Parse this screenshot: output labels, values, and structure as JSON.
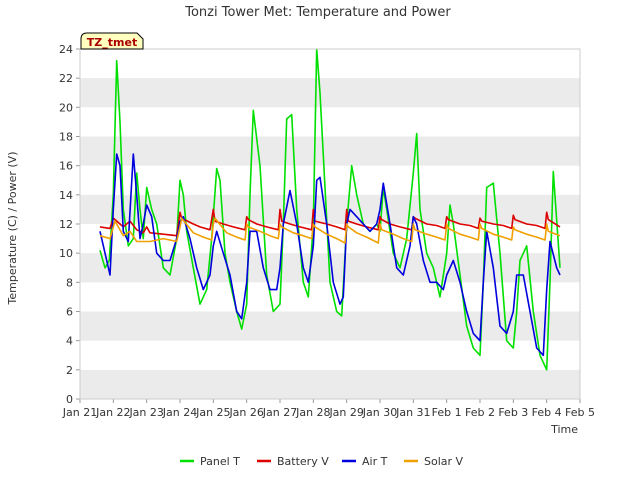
{
  "chart_data": {
    "type": "line",
    "title": "Tonzi Tower Met: Temperature and Power",
    "xlabel": "Time",
    "ylabel": "Temperature (C) / Power (V)",
    "badge": "TZ_tmet",
    "xlim": [
      0,
      15
    ],
    "ylim": [
      0,
      24
    ],
    "x_ticks": [
      {
        "x": 0,
        "label": "Jan 21"
      },
      {
        "x": 1,
        "label": "Jan 22"
      },
      {
        "x": 2,
        "label": "Jan 23"
      },
      {
        "x": 3,
        "label": "Jan 24"
      },
      {
        "x": 4,
        "label": "Jan 25"
      },
      {
        "x": 5,
        "label": "Jan 26"
      },
      {
        "x": 6,
        "label": "Jan 27"
      },
      {
        "x": 7,
        "label": "Jan 28"
      },
      {
        "x": 8,
        "label": "Jan 29"
      },
      {
        "x": 9,
        "label": "Jan 30"
      },
      {
        "x": 10,
        "label": "Jan 31"
      },
      {
        "x": 11,
        "label": "Feb 1"
      },
      {
        "x": 12,
        "label": "Feb 2"
      },
      {
        "x": 13,
        "label": "Feb 3"
      },
      {
        "x": 14,
        "label": "Feb 4"
      },
      {
        "x": 15,
        "label": "Feb 5"
      }
    ],
    "y_ticks": [
      0,
      2,
      4,
      6,
      8,
      10,
      12,
      14,
      16,
      18,
      20,
      22,
      24
    ],
    "series": [
      {
        "name": "Panel T",
        "color": "#00e000",
        "x": [
          0.6,
          0.75,
          0.88,
          1.0,
          1.1,
          1.2,
          1.3,
          1.45,
          1.6,
          1.7,
          1.8,
          1.9,
          2.0,
          2.15,
          2.3,
          2.5,
          2.7,
          2.9,
          3.0,
          3.1,
          3.2,
          3.4,
          3.6,
          3.8,
          3.95,
          4.1,
          4.2,
          4.35,
          4.5,
          4.7,
          4.85,
          5.0,
          5.1,
          5.2,
          5.4,
          5.6,
          5.8,
          6.0,
          6.1,
          6.2,
          6.35,
          6.5,
          6.7,
          6.85,
          7.0,
          7.1,
          7.2,
          7.35,
          7.5,
          7.7,
          7.85,
          8.0,
          8.15,
          8.3,
          8.5,
          8.7,
          8.9,
          9.0,
          9.1,
          9.2,
          9.4,
          9.6,
          9.8,
          10.0,
          10.1,
          10.2,
          10.4,
          10.6,
          10.8,
          11.0,
          11.1,
          11.2,
          11.4,
          11.6,
          11.8,
          12.0,
          12.1,
          12.2,
          12.4,
          12.6,
          12.8,
          13.0,
          13.1,
          13.2,
          13.4,
          13.6,
          13.8,
          14.0,
          14.1,
          14.2,
          14.4
        ],
        "y": [
          10.2,
          9.0,
          9.5,
          14.0,
          23.2,
          19.0,
          13.0,
          10.5,
          11.0,
          15.5,
          13.0,
          11.0,
          14.5,
          13.0,
          12.0,
          9.0,
          8.5,
          11.0,
          15.0,
          14.0,
          11.5,
          9.0,
          6.5,
          7.5,
          11.0,
          15.8,
          15.0,
          10.0,
          8.0,
          6.0,
          4.8,
          6.5,
          14.0,
          19.8,
          16.0,
          8.5,
          6.0,
          6.5,
          12.0,
          19.2,
          19.5,
          13.0,
          8.0,
          7.0,
          12.0,
          24.0,
          21.0,
          14.5,
          8.0,
          6.0,
          5.7,
          12.0,
          16.0,
          14.0,
          12.0,
          11.5,
          12.0,
          11.5,
          14.5,
          13.0,
          10.0,
          9.0,
          11.0,
          15.5,
          18.2,
          13.0,
          10.0,
          9.0,
          7.0,
          10.0,
          13.3,
          12.0,
          8.5,
          5.0,
          3.5,
          3.0,
          8.0,
          14.5,
          14.8,
          10.0,
          4.0,
          3.5,
          6.0,
          9.5,
          10.5,
          6.0,
          3.0,
          2.0,
          8.0,
          15.6,
          9.0
        ]
      },
      {
        "name": "Battery V",
        "color": "#dd0000",
        "x": [
          0.6,
          0.9,
          1.0,
          1.05,
          1.3,
          1.5,
          1.7,
          1.9,
          2.0,
          2.1,
          2.5,
          2.9,
          3.0,
          3.05,
          3.4,
          3.6,
          3.9,
          4.0,
          4.05,
          4.3,
          4.6,
          4.95,
          5.0,
          5.05,
          5.3,
          5.6,
          5.95,
          6.0,
          6.05,
          6.3,
          6.6,
          6.95,
          7.0,
          7.05,
          7.4,
          7.7,
          7.95,
          8.0,
          8.05,
          8.3,
          8.6,
          8.95,
          9.0,
          9.05,
          9.3,
          9.6,
          9.95,
          10.0,
          10.05,
          10.4,
          10.7,
          10.95,
          11.0,
          11.05,
          11.4,
          11.7,
          11.95,
          12.0,
          12.05,
          12.4,
          12.7,
          12.95,
          13.0,
          13.05,
          13.4,
          13.7,
          13.95,
          14.0,
          14.05,
          14.4
        ],
        "y": [
          11.8,
          11.7,
          12.4,
          12.3,
          11.8,
          12.2,
          11.6,
          11.4,
          11.8,
          11.4,
          11.3,
          11.2,
          12.8,
          12.4,
          12.0,
          11.8,
          11.6,
          13.0,
          12.2,
          12.0,
          11.8,
          11.6,
          12.5,
          12.3,
          12.0,
          11.8,
          11.6,
          13.0,
          12.2,
          12.0,
          11.8,
          11.6,
          13.0,
          12.2,
          12.0,
          11.8,
          11.6,
          13.0,
          12.2,
          12.0,
          11.8,
          11.6,
          12.5,
          12.3,
          12.0,
          11.8,
          11.6,
          12.5,
          12.4,
          12.0,
          11.9,
          11.7,
          12.5,
          12.3,
          12.0,
          11.9,
          11.7,
          12.4,
          12.2,
          12.0,
          11.9,
          11.7,
          12.6,
          12.3,
          12.0,
          11.9,
          11.7,
          12.8,
          12.3,
          11.8
        ]
      },
      {
        "name": "Air T",
        "color": "#0000dd",
        "x": [
          0.6,
          0.8,
          0.9,
          1.0,
          1.1,
          1.2,
          1.3,
          1.45,
          1.6,
          1.7,
          1.8,
          1.9,
          2.0,
          2.15,
          2.3,
          2.5,
          2.7,
          2.9,
          3.0,
          3.1,
          3.3,
          3.5,
          3.7,
          3.9,
          4.0,
          4.1,
          4.3,
          4.5,
          4.7,
          4.85,
          5.0,
          5.1,
          5.3,
          5.5,
          5.7,
          5.9,
          6.0,
          6.1,
          6.3,
          6.5,
          6.7,
          6.85,
          7.0,
          7.1,
          7.2,
          7.4,
          7.6,
          7.8,
          7.9,
          8.0,
          8.1,
          8.3,
          8.5,
          8.7,
          8.9,
          9.0,
          9.1,
          9.3,
          9.5,
          9.7,
          9.9,
          10.0,
          10.1,
          10.3,
          10.5,
          10.7,
          10.9,
          11.0,
          11.2,
          11.4,
          11.6,
          11.8,
          12.0,
          12.1,
          12.2,
          12.4,
          12.6,
          12.8,
          13.0,
          13.1,
          13.3,
          13.5,
          13.7,
          13.9,
          14.0,
          14.1,
          14.3,
          14.4
        ],
        "y": [
          11.5,
          9.5,
          8.5,
          13.0,
          16.8,
          16.0,
          11.5,
          10.8,
          16.8,
          14.0,
          11.0,
          12.0,
          13.3,
          12.5,
          10.0,
          9.5,
          9.5,
          11.0,
          12.2,
          12.5,
          11.0,
          9.0,
          7.5,
          8.5,
          10.5,
          11.5,
          10.0,
          8.5,
          6.0,
          5.5,
          8.0,
          11.5,
          11.5,
          9.0,
          7.5,
          7.5,
          9.0,
          12.0,
          14.3,
          12.0,
          9.0,
          8.0,
          10.5,
          15.0,
          15.2,
          12.0,
          8.0,
          6.5,
          7.0,
          12.0,
          13.0,
          12.5,
          12.0,
          11.5,
          12.0,
          13.0,
          14.8,
          12.0,
          9.0,
          8.5,
          10.5,
          12.5,
          12.0,
          9.5,
          8.0,
          8.0,
          7.5,
          8.5,
          9.5,
          8.0,
          6.0,
          4.5,
          4.0,
          8.0,
          11.5,
          9.0,
          5.0,
          4.5,
          6.0,
          8.5,
          8.5,
          6.0,
          3.5,
          3.0,
          7.5,
          10.8,
          9.0,
          8.5
        ]
      },
      {
        "name": "Solar V",
        "color": "#f0a000",
        "x": [
          0.6,
          0.9,
          1.0,
          1.05,
          1.3,
          1.5,
          1.7,
          1.9,
          2.1,
          2.5,
          2.9,
          3.0,
          3.05,
          3.4,
          3.7,
          3.95,
          4.0,
          4.05,
          4.4,
          4.7,
          4.95,
          5.0,
          5.05,
          5.4,
          5.7,
          5.95,
          6.0,
          6.05,
          6.4,
          6.7,
          6.95,
          7.0,
          7.05,
          7.4,
          7.7,
          7.95,
          8.0,
          8.05,
          8.3,
          8.6,
          8.95,
          9.0,
          9.05,
          9.4,
          9.7,
          9.95,
          10.0,
          10.05,
          10.4,
          10.7,
          10.95,
          11.0,
          11.05,
          11.4,
          11.7,
          11.95,
          12.0,
          12.05,
          12.4,
          12.7,
          12.95,
          13.0,
          13.05,
          13.4,
          13.7,
          13.95,
          14.0,
          14.05,
          14.4
        ],
        "y": [
          11.2,
          11.0,
          11.8,
          12.2,
          11.2,
          11.5,
          10.8,
          10.8,
          10.8,
          11.0,
          10.8,
          11.8,
          12.4,
          11.4,
          11.1,
          10.9,
          12.0,
          12.4,
          11.4,
          11.1,
          10.9,
          12.0,
          11.8,
          11.5,
          11.2,
          11.0,
          12.0,
          11.8,
          11.4,
          11.2,
          11.0,
          12.0,
          11.8,
          11.3,
          11.0,
          10.7,
          12.0,
          11.8,
          11.4,
          11.1,
          10.7,
          12.0,
          11.6,
          11.3,
          11.0,
          10.8,
          12.0,
          11.6,
          11.3,
          11.1,
          10.9,
          12.0,
          11.7,
          11.3,
          11.1,
          10.9,
          12.0,
          11.7,
          11.3,
          11.1,
          10.9,
          11.8,
          11.6,
          11.3,
          11.1,
          10.9,
          12.0,
          11.5,
          11.2
        ]
      }
    ],
    "legend_placement": "bottom",
    "grid": "alternating horizontal bands"
  }
}
